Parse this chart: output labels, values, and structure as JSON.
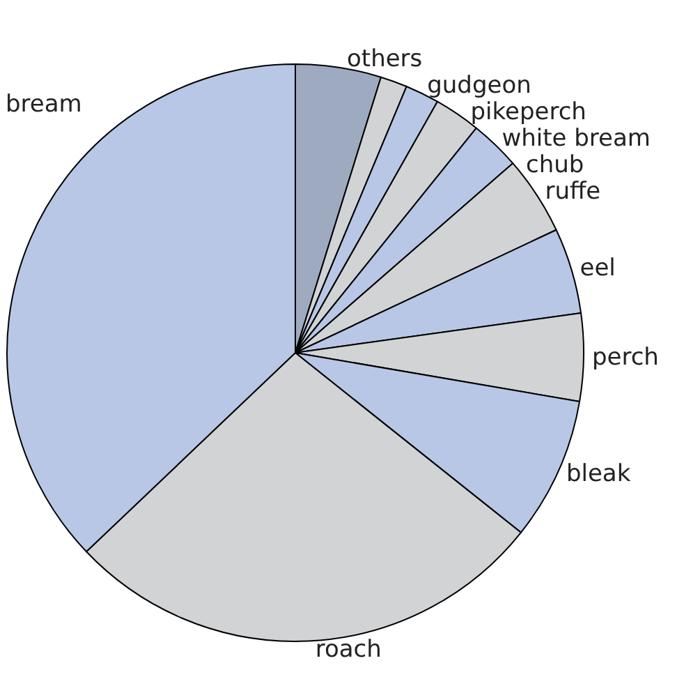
{
  "chart_data": {
    "type": "pie",
    "categories": [
      "others",
      "gudgeon",
      "pikeperch",
      "white bream",
      "chub",
      "ruffe",
      "eel",
      "perch",
      "bleak",
      "roach",
      "bream"
    ],
    "values": [
      4.8,
      1.5,
      1.9,
      2.6,
      2.8,
      4.4,
      4.8,
      4.9,
      8.0,
      27.2,
      37.1
    ],
    "colors": [
      "#9eaac0",
      "#d2d3d5",
      "#b8c7e6",
      "#d2d3d5",
      "#b8c7e6",
      "#d2d3d5",
      "#b8c7e6",
      "#d2d3d5",
      "#b8c7e6",
      "#d2d3d5",
      "#b8c7e6"
    ]
  }
}
